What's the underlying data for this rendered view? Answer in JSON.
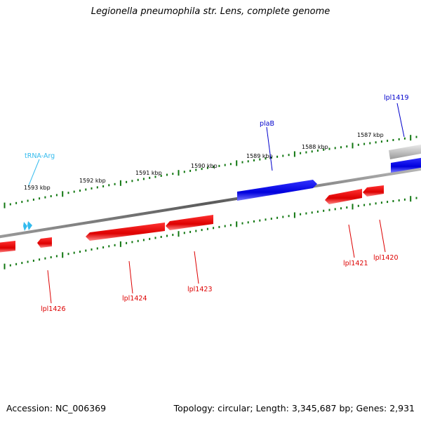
{
  "title": "Legionella pneumophila str. Lens, complete genome",
  "footer": {
    "accession": "Accession: NC_006369",
    "summary": "Topology: circular; Length: 3,345,687 bp; Genes: 2,931"
  },
  "colors": {
    "forward_gene": "#0000ee",
    "reverse_gene": "#ee0000",
    "rna": "#33bbee",
    "ticks": "#117711",
    "backbone": "#777777"
  },
  "scale_labels": [
    "1593 kbp",
    "1592 kbp",
    "1591 kbp",
    "1590 kbp",
    "1589 kbp",
    "1588 kbp",
    "1587 kbp"
  ],
  "features": [
    {
      "label": "tRNA-Arg",
      "strand": "+",
      "type": "tRNA"
    },
    {
      "label": "plaB",
      "strand": "+",
      "type": "gene"
    },
    {
      "label": "lpl1419",
      "strand": "+",
      "type": "gene"
    },
    {
      "label": "lpl1420",
      "strand": "-",
      "type": "gene"
    },
    {
      "label": "lpl1421",
      "strand": "-",
      "type": "gene"
    },
    {
      "label": "lpl1423",
      "strand": "-",
      "type": "gene"
    },
    {
      "label": "lpl1424",
      "strand": "-",
      "type": "gene"
    },
    {
      "label": "lpl1426",
      "strand": "-",
      "type": "gene"
    }
  ]
}
